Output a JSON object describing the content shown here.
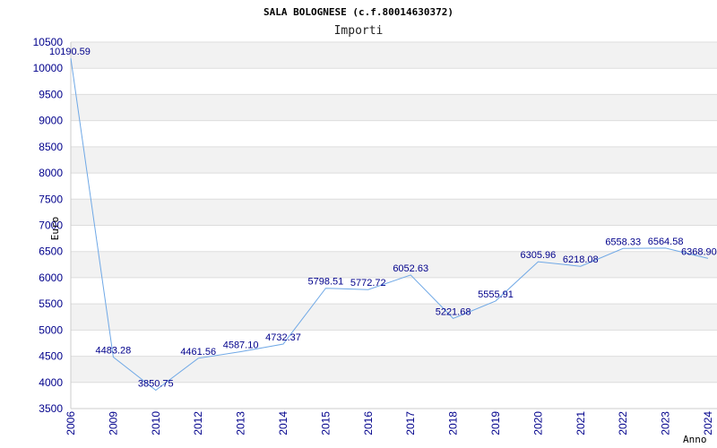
{
  "chart_data": {
    "type": "line",
    "title": "SALA BOLOGNESE (c.f.80014630372)",
    "subtitle": "Importi",
    "xlabel": "Anno",
    "ylabel": "Euro",
    "ylim": [
      3500,
      10500
    ],
    "ytick_step": 500,
    "grid": true,
    "x": [
      "2006",
      "2009",
      "2010",
      "2012",
      "2013",
      "2014",
      "2015",
      "2016",
      "2017",
      "2018",
      "2019",
      "2020",
      "2021",
      "2022",
      "2023",
      "2024"
    ],
    "values": [
      10190.59,
      4483.28,
      3850.75,
      4461.56,
      4587.1,
      4732.37,
      5798.51,
      5772.72,
      6052.63,
      5221.68,
      5555.91,
      6305.96,
      6218.08,
      6558.33,
      6564.58,
      6368.9
    ],
    "value_labels": [
      "10190.59",
      "4483.28",
      "3850.75",
      "4461.56",
      "4587.10",
      "4732.37",
      "5798.51",
      "5772.72",
      "6052.63",
      "5221.68",
      "5555.91",
      "6305.96",
      "6218.08",
      "6558.33",
      "6564.58",
      "6368.90"
    ],
    "colors": {
      "line": "#6fa8e6",
      "band": "#f2f2f2",
      "tick_text": "#00008b",
      "axis": "#cccccc"
    }
  }
}
